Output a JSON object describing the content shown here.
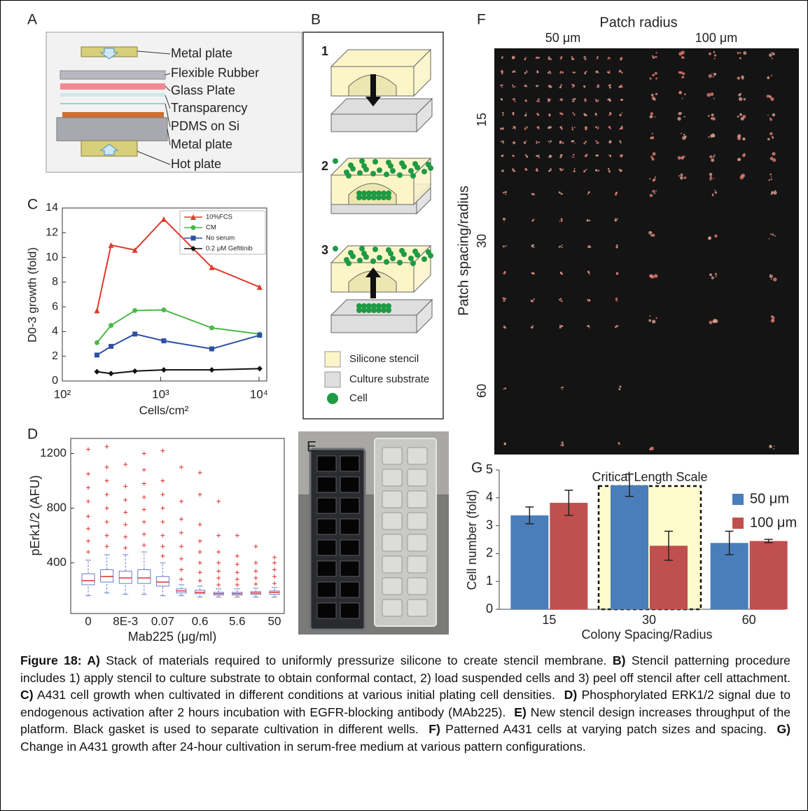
{
  "panels": {
    "A": {
      "label": "A",
      "layers": [
        "Metal plate",
        "Flexible Rubber",
        "Glass Plate",
        "Transparency",
        "PDMS on Si",
        "Metal plate",
        "Hot plate"
      ]
    },
    "B": {
      "label": "B",
      "steps": [
        "1",
        "2",
        "3"
      ],
      "legend": [
        "Silicone stencil",
        "Culture substrate",
        "Cell"
      ]
    },
    "C": {
      "label": "C"
    },
    "D": {
      "label": "D"
    },
    "E": {
      "label": "E"
    },
    "F": {
      "label": "F",
      "title": "Patch radius",
      "columns": [
        "50 μm",
        "100 μm"
      ],
      "ylabel": "Patch spacing/radius",
      "rows": [
        "15",
        "30",
        "60"
      ]
    },
    "G": {
      "label": "G"
    }
  },
  "chart_data": [
    {
      "type": "line",
      "xlabel": "Cells/cm²",
      "ylabel": "D0-3 growth (fold)",
      "xscale": "log",
      "xlim": [
        100,
        12000
      ],
      "xticks": [
        {
          "value": 100,
          "label": "10²"
        },
        {
          "value": 1000,
          "label": "10³"
        },
        {
          "value": 10000,
          "label": "10⁴"
        }
      ],
      "ylim": [
        0,
        14
      ],
      "yticks": [
        0,
        2,
        4,
        6,
        8,
        10,
        12,
        14
      ],
      "x": [
        225,
        313,
        547,
        1076,
        3311,
        10160
      ],
      "legend": "upper right",
      "series": [
        {
          "name": "10%FCS",
          "color": "#e03a2c",
          "marker": "triangle",
          "values": [
            5.7,
            11.0,
            10.6,
            13.1,
            9.2,
            7.6
          ]
        },
        {
          "name": "CM",
          "color": "#4cb848",
          "marker": "circle",
          "values": [
            3.1,
            4.5,
            5.7,
            5.75,
            4.3,
            3.8
          ]
        },
        {
          "name": "No serum",
          "color": "#2e4fa3",
          "marker": "square",
          "values": [
            2.1,
            2.8,
            3.8,
            3.25,
            2.6,
            3.7
          ]
        },
        {
          "name": "0.2 μM Gefitinib",
          "color": "#111111",
          "marker": "diamond",
          "values": [
            0.75,
            0.6,
            0.8,
            0.9,
            0.9,
            1.0
          ]
        }
      ]
    },
    {
      "type": "box",
      "xlabel": "Mab225 (μg/ml)",
      "ylabel": "pErk1/2 (AFU)",
      "categories": [
        "0",
        null,
        "8E-3",
        null,
        "0.07",
        null,
        "0.6",
        null,
        "5.6",
        null,
        "50"
      ],
      "ylim": [
        30,
        1310
      ],
      "yticks": [
        400,
        800,
        1200
      ],
      "box_color": "#6a7dc8",
      "median_color": "#e03030",
      "outlier_color": "#e03030",
      "boxes": [
        {
          "low": 160,
          "q1": 240,
          "median": 270,
          "q3": 320,
          "high": 420,
          "outliers": [
            480,
            560,
            650,
            740,
            850,
            950,
            1050,
            1230
          ]
        },
        {
          "low": 180,
          "q1": 260,
          "median": 300,
          "q3": 350,
          "high": 460,
          "outliers": [
            520,
            600,
            700,
            800,
            900,
            1000,
            1100,
            1250
          ]
        },
        {
          "low": 170,
          "q1": 250,
          "median": 290,
          "q3": 340,
          "high": 460,
          "outliers": [
            510,
            590,
            680,
            770,
            860,
            960,
            1120
          ]
        },
        {
          "low": 170,
          "q1": 250,
          "median": 290,
          "q3": 350,
          "high": 480,
          "outliers": [
            530,
            610,
            700,
            790,
            880,
            980,
            1080,
            1200
          ]
        },
        {
          "low": 160,
          "q1": 230,
          "median": 260,
          "q3": 300,
          "high": 400,
          "outliers": [
            450,
            520,
            600,
            700,
            800,
            900,
            1000,
            1220
          ]
        },
        {
          "low": 160,
          "q1": 180,
          "median": 195,
          "q3": 210,
          "high": 240,
          "outliers": [
            280,
            350,
            430,
            520,
            620,
            720,
            850,
            1100
          ]
        },
        {
          "low": 150,
          "q1": 175,
          "median": 185,
          "q3": 200,
          "high": 230,
          "outliers": [
            270,
            330,
            400,
            480,
            560,
            680,
            900,
            1060
          ]
        },
        {
          "low": 150,
          "q1": 165,
          "median": 175,
          "q3": 185,
          "high": 210,
          "outliers": [
            240,
            290,
            340,
            400,
            480,
            600,
            850
          ]
        },
        {
          "low": 150,
          "q1": 165,
          "median": 175,
          "q3": 185,
          "high": 210,
          "outliers": [
            240,
            280,
            330,
            390,
            450,
            600
          ]
        },
        {
          "low": 150,
          "q1": 170,
          "median": 180,
          "q3": 190,
          "high": 215,
          "outliers": [
            245,
            290,
            340,
            400,
            520
          ]
        },
        {
          "low": 150,
          "q1": 170,
          "median": 185,
          "q3": 195,
          "high": 220,
          "outliers": [
            250,
            300,
            350,
            400,
            440
          ]
        }
      ]
    },
    {
      "type": "bar",
      "title": "Critical Length Scale",
      "xlabel": "Colony Spacing/Radius",
      "ylabel": "Cell number (fold)",
      "categories": [
        "15",
        "30",
        "60"
      ],
      "ylim": [
        0,
        5
      ],
      "yticks": [
        0,
        1,
        2,
        3,
        4,
        5
      ],
      "legend": "upper right",
      "series": [
        {
          "name": "50 μm",
          "color": "#4a7ebb",
          "values": [
            3.37,
            4.45,
            2.38
          ],
          "errors": [
            0.3,
            0.4,
            0.42
          ]
        },
        {
          "name": "100 μm",
          "color": "#c0504d",
          "values": [
            3.82,
            2.28,
            2.45
          ],
          "errors": [
            0.45,
            0.52,
            0.06
          ]
        }
      ]
    }
  ],
  "caption": [
    {
      "text": "Figure 18: A)",
      "bold": true
    },
    {
      "text": " Stack of materials required to uniformly pressurize silicone to create stencil membrane. ",
      "bold": false
    },
    {
      "text": "B)",
      "bold": true
    },
    {
      "text": " Stencil patterning procedure includes 1) apply stencil to culture substrate to obtain conformal contact, 2) load suspended cells and 3) peel off stencil after cell attachment.  ",
      "bold": false
    },
    {
      "text": "C)",
      "bold": true
    },
    {
      "text": " A431 cell growth when cultivated in different conditions at various initial plating cell densities.  ",
      "bold": false
    },
    {
      "text": "D)",
      "bold": true
    },
    {
      "text": " Phosphorylated ERK1/2 signal due to endogenous activation after 2 hours incubation with EGFR-blocking antibody (MAb225).  ",
      "bold": false
    },
    {
      "text": "E)",
      "bold": true
    },
    {
      "text": " New stencil design increases throughput of the platform. Black gasket is used to separate cultivation in different wells.  ",
      "bold": false
    },
    {
      "text": "F)",
      "bold": true
    },
    {
      "text": " Patterned A431 cells at varying patch sizes and spacing.  ",
      "bold": false
    },
    {
      "text": "G)",
      "bold": true
    },
    {
      "text": " Change in A431 growth after 24-hour cultivation in serum-free medium at various pattern configurations.",
      "bold": false
    }
  ]
}
